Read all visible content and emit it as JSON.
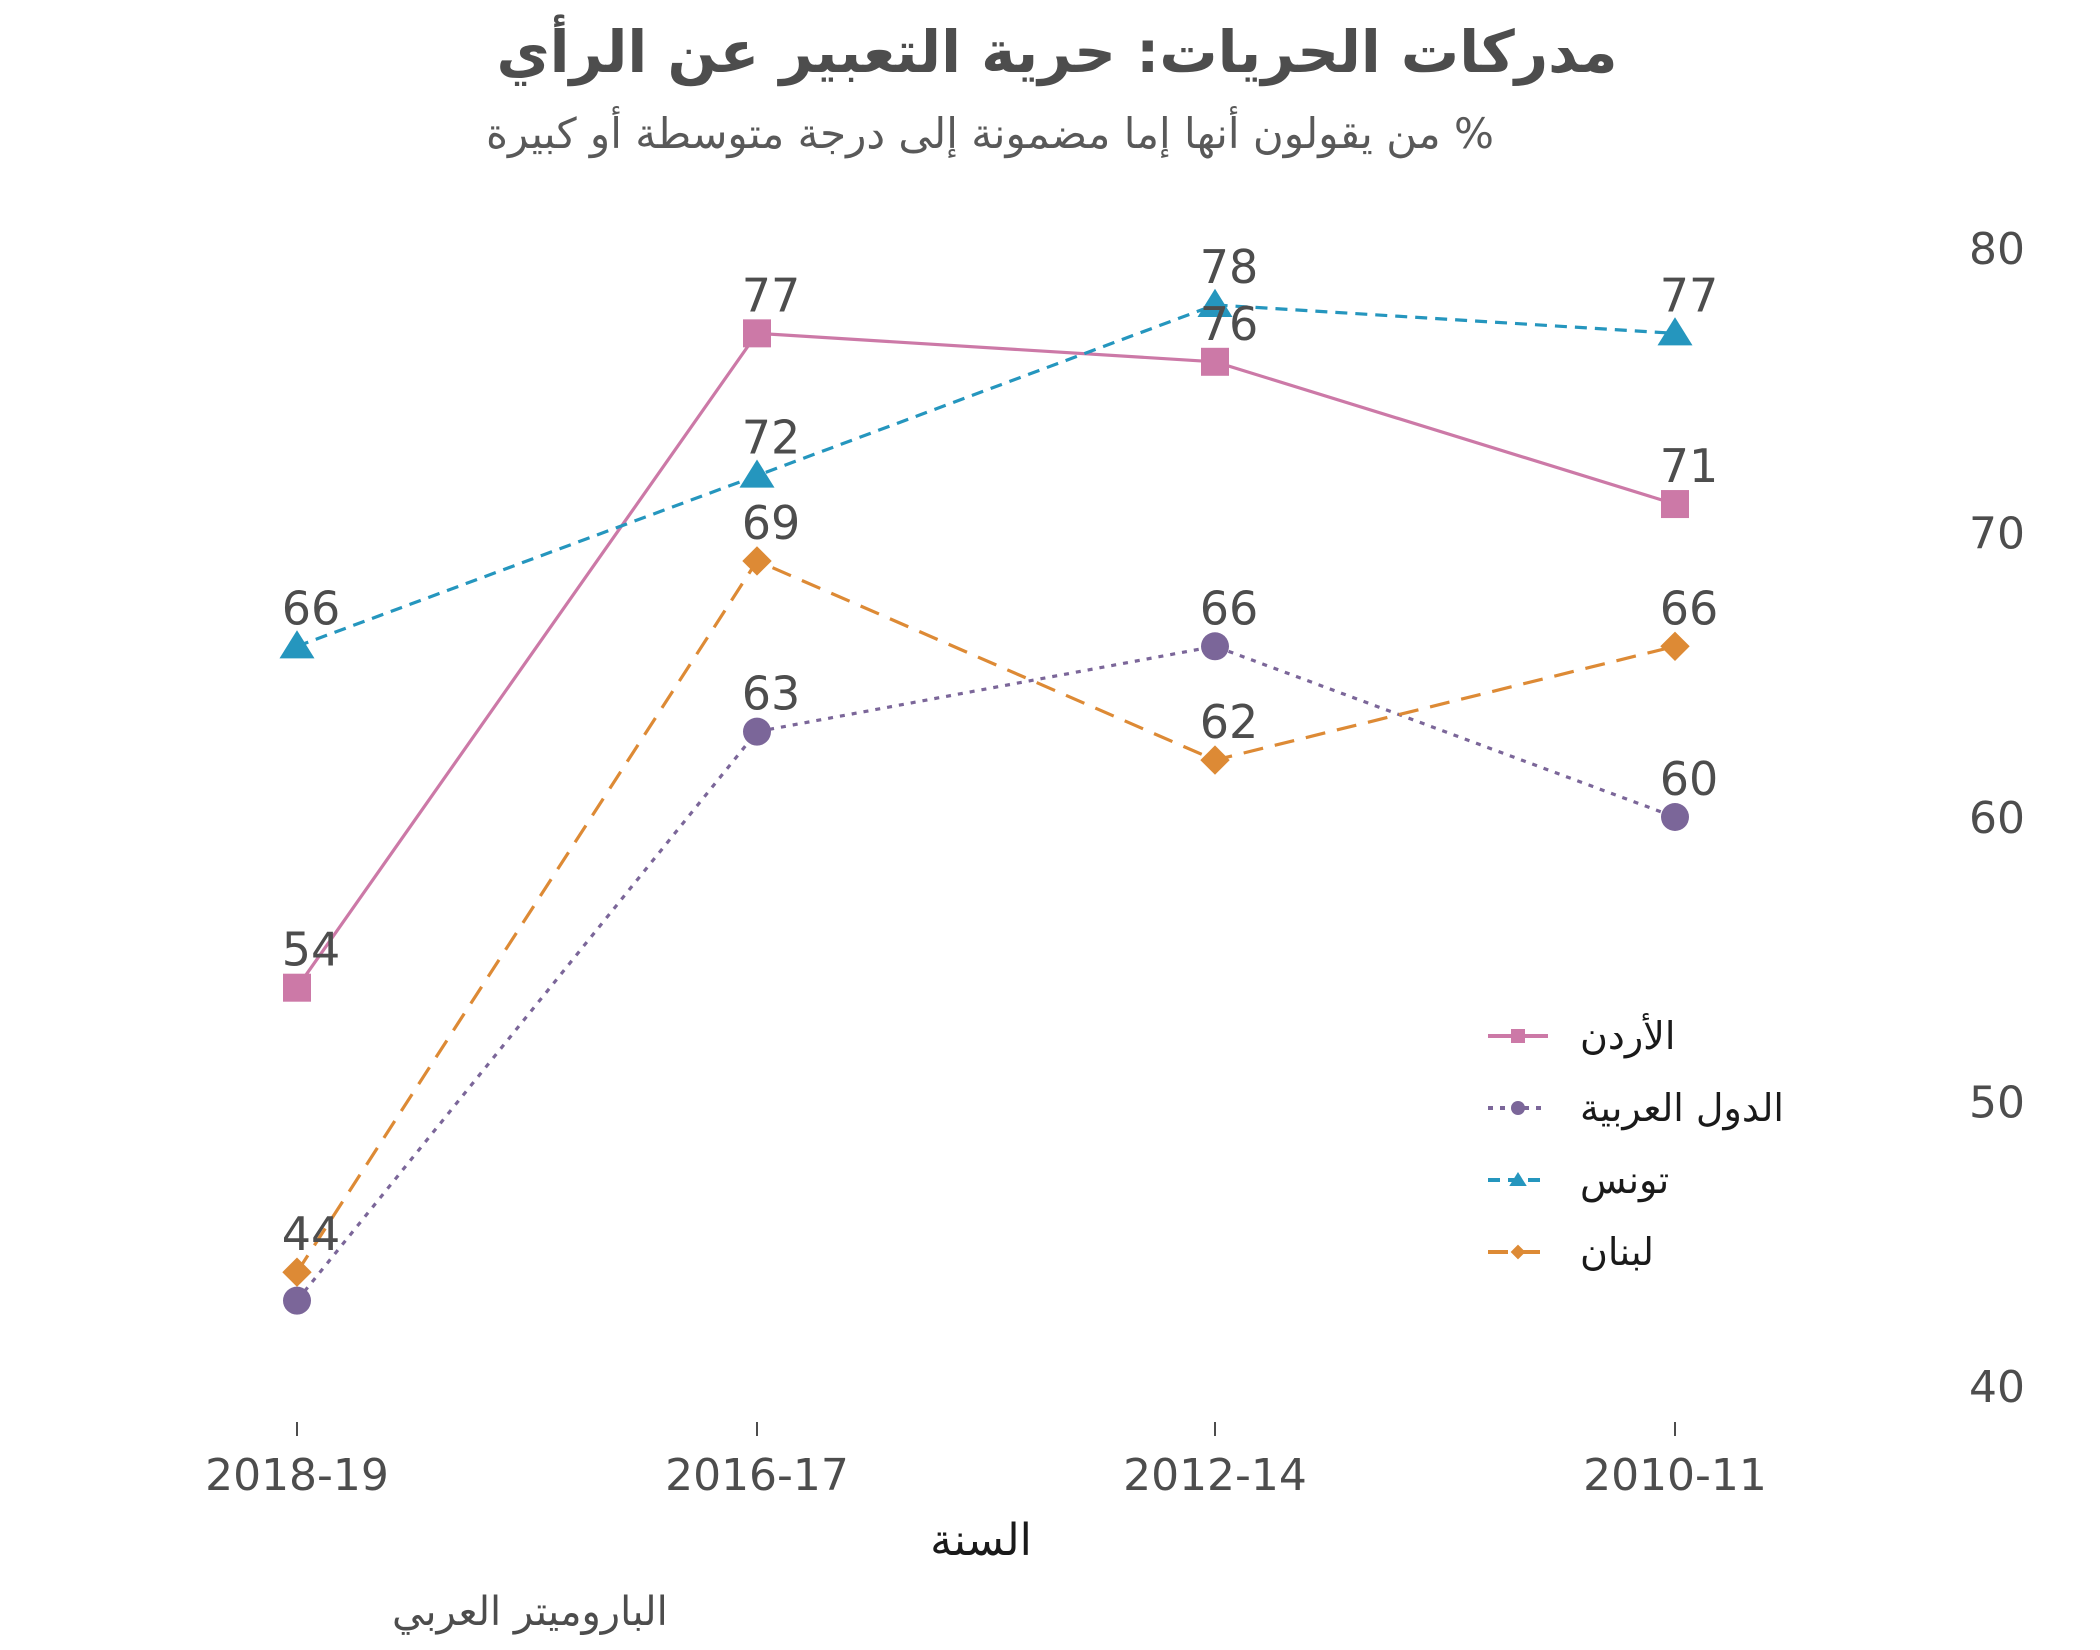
{
  "chart_data": {
    "type": "line",
    "title": "مدركات الحريات: حرية التعبير عن الرأي",
    "subtitle": "% من يقولون أنها إما مضمونة إلى درجة متوسطة أو كبيرة",
    "xlabel": "السنة",
    "ylabel": "",
    "categories": [
      "2018-19",
      "2016-17",
      "2012-14",
      "2010-11"
    ],
    "ylim": [
      38,
      82
    ],
    "yticks": [
      40,
      50,
      60,
      70,
      80
    ],
    "y_axis_position": "right",
    "grid": false,
    "legend_position": "right-bottom",
    "series": [
      {
        "name": "الأردن",
        "values": [
          54,
          77,
          76,
          71
        ],
        "color": "#cc79a7",
        "dash": "solid",
        "marker": "square"
      },
      {
        "name": "الدول العربية",
        "values": [
          43,
          63,
          66,
          60
        ],
        "color": "#7b6699",
        "dash": "dotted",
        "marker": "circle"
      },
      {
        "name": "تونس",
        "values": [
          66,
          72,
          78,
          77
        ],
        "color": "#2596be",
        "dash": "dashed",
        "marker": "triangle"
      },
      {
        "name": "لبنان",
        "values": [
          44,
          69,
          62,
          66
        ],
        "color": "#dd8a35",
        "dash": "longdash",
        "marker": "diamond"
      }
    ],
    "data_labels": [
      {
        "series": 0,
        "values": [
          "54",
          "77",
          "76",
          "71"
        ]
      },
      {
        "series": 1,
        "values": [
          "",
          "63",
          "66",
          "60"
        ]
      },
      {
        "series": 2,
        "values": [
          "66",
          "72",
          "78",
          "77"
        ]
      },
      {
        "series": 3,
        "values": [
          "44",
          "69",
          "62",
          "66"
        ]
      }
    ]
  },
  "caption": "الباروميتر العربي"
}
